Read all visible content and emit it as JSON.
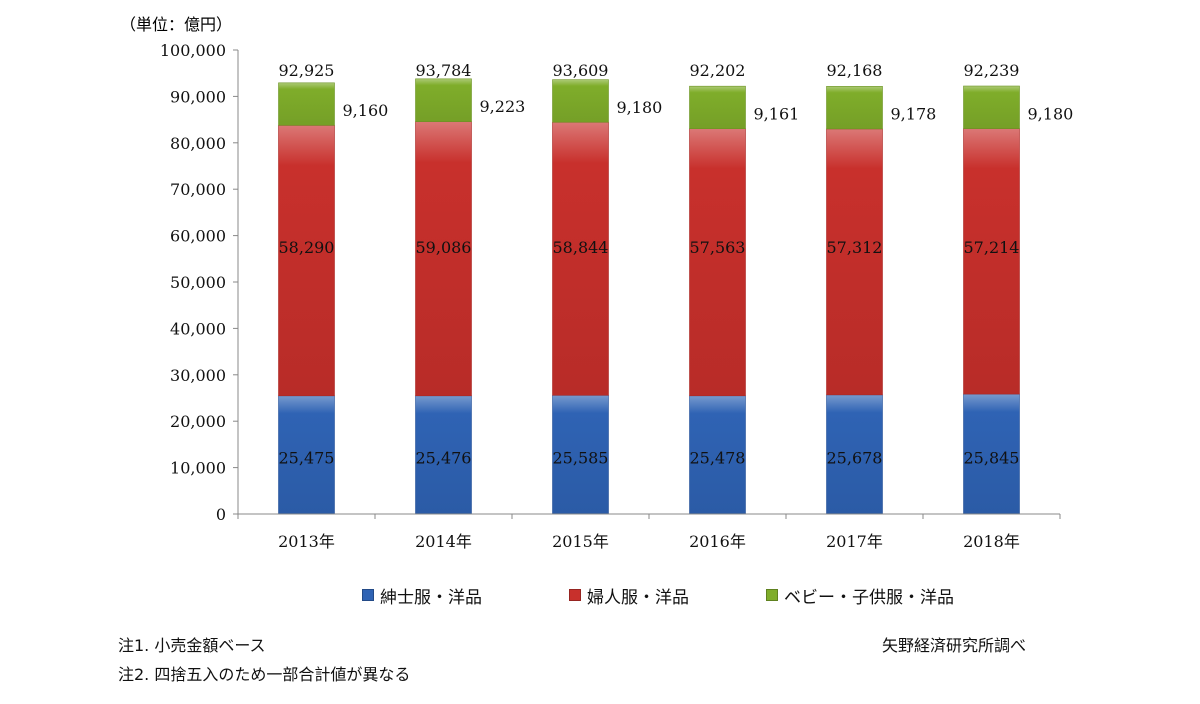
{
  "chart_data": {
    "type": "bar",
    "stacked": true,
    "unit_label": "（単位：億円）",
    "categories": [
      "2013年",
      "2014年",
      "2015年",
      "2016年",
      "2017年",
      "2018年"
    ],
    "series": [
      {
        "name": "紳士服・洋品",
        "color": "#2f63b4",
        "values": [
          25475,
          25476,
          25585,
          25478,
          25678,
          25845
        ]
      },
      {
        "name": "婦人服・洋品",
        "color": "#c8302c",
        "values": [
          58290,
          59086,
          58844,
          57563,
          57312,
          57214
        ]
      },
      {
        "name": "ベビー・子供服・洋品",
        "color": "#7fad2a",
        "values": [
          9160,
          9223,
          9180,
          9161,
          9178,
          9180
        ]
      }
    ],
    "totals": [
      92925,
      93784,
      93609,
      92202,
      92168,
      92239
    ],
    "ylim": [
      0,
      100000
    ],
    "yticks": [
      "0",
      "10,000",
      "20,000",
      "30,000",
      "40,000",
      "50,000",
      "60,000",
      "70,000",
      "80,000",
      "90,000",
      "100,000"
    ],
    "legend_position": "bottom",
    "grid": false
  },
  "notes": {
    "note1": "注1. 小売金額ベース",
    "note2": "注2. 四捨五入のため一部合計値が異なる",
    "source": "矢野経済研究所調べ"
  }
}
